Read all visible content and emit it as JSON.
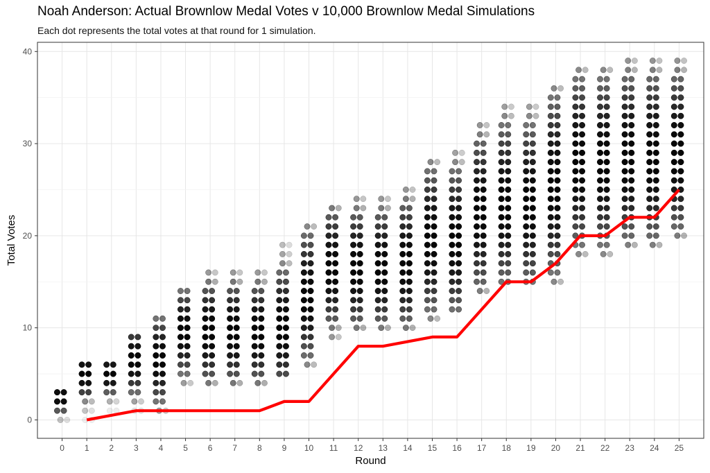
{
  "chart_data": {
    "type": "scatter",
    "title": "Noah Anderson: Actual Brownlow Medal Votes v 10,000 Brownlow Medal Simulations",
    "subtitle": "Each dot represents the total votes at that round for 1 simulation.",
    "xlabel": "Round",
    "ylabel": "Total Votes",
    "xlim": [
      -1,
      26
    ],
    "ylim": [
      -2,
      41
    ],
    "x_ticks": [
      0,
      1,
      2,
      3,
      4,
      5,
      6,
      7,
      8,
      9,
      10,
      11,
      12,
      13,
      14,
      15,
      16,
      17,
      18,
      19,
      20,
      21,
      22,
      23,
      24,
      25
    ],
    "y_ticks": [
      0,
      10,
      20,
      30,
      40
    ],
    "grid": true,
    "colors": {
      "points": "#000000",
      "actual_line": "#ff0000",
      "grid": "#e6e6e6",
      "panel_border": "#333333"
    },
    "series": [
      {
        "kind": "simulated-distribution",
        "summary": [
          {
            "round": 0,
            "min": 0,
            "max": 3,
            "mode": 2.5
          },
          {
            "round": 1,
            "min": 0,
            "max": 6,
            "mode": 5
          },
          {
            "round": 2,
            "min": 1,
            "max": 6,
            "mode": 5
          },
          {
            "round": 3,
            "min": 1,
            "max": 9,
            "mode": 6.5
          },
          {
            "round": 4,
            "min": 1,
            "max": 11,
            "mode": 6.5
          },
          {
            "round": 5,
            "min": 4,
            "max": 14,
            "mode": 9.5
          },
          {
            "round": 6,
            "min": 4,
            "max": 16,
            "mode": 9.5
          },
          {
            "round": 7,
            "min": 4,
            "max": 16,
            "mode": 9.5
          },
          {
            "round": 8,
            "min": 4,
            "max": 16,
            "mode": 9.5
          },
          {
            "round": 9,
            "min": 5,
            "max": 19,
            "mode": 10
          },
          {
            "round": 10,
            "min": 6,
            "max": 21,
            "mode": 13.5
          },
          {
            "round": 11,
            "min": 9,
            "max": 23,
            "mode": 16.5
          },
          {
            "round": 12,
            "min": 10,
            "max": 24,
            "mode": 16.5
          },
          {
            "round": 13,
            "min": 10,
            "max": 24,
            "mode": 16.5
          },
          {
            "round": 14,
            "min": 10,
            "max": 25,
            "mode": 17
          },
          {
            "round": 15,
            "min": 11,
            "max": 28,
            "mode": 19.5
          },
          {
            "round": 16,
            "min": 12,
            "max": 29,
            "mode": 19.5
          },
          {
            "round": 17,
            "min": 14,
            "max": 32,
            "mode": 22.5
          },
          {
            "round": 18,
            "min": 15,
            "max": 34,
            "mode": 23.5
          },
          {
            "round": 19,
            "min": 15,
            "max": 34,
            "mode": 23.5
          },
          {
            "round": 20,
            "min": 15,
            "max": 36,
            "mode": 25.5
          },
          {
            "round": 21,
            "min": 18,
            "max": 38,
            "mode": 28
          },
          {
            "round": 22,
            "min": 18,
            "max": 38,
            "mode": 28
          },
          {
            "round": 23,
            "min": 19,
            "max": 39,
            "mode": 28.5
          },
          {
            "round": 24,
            "min": 19,
            "max": 39,
            "mode": 28.5
          },
          {
            "round": 25,
            "min": 20,
            "max": 39,
            "mode": 29
          }
        ]
      },
      {
        "kind": "actual",
        "x": [
          1,
          2,
          3,
          4,
          5,
          6,
          7,
          8,
          9,
          10,
          11,
          12,
          13,
          14,
          15,
          16,
          17,
          18,
          19,
          20,
          21,
          22,
          23,
          24,
          25
        ],
        "values": [
          0,
          0.5,
          1,
          1,
          1,
          1,
          1,
          1,
          2,
          2,
          5,
          8,
          8,
          8.5,
          9,
          9,
          12,
          15,
          15,
          17,
          20,
          20,
          22,
          22,
          25
        ]
      }
    ]
  }
}
